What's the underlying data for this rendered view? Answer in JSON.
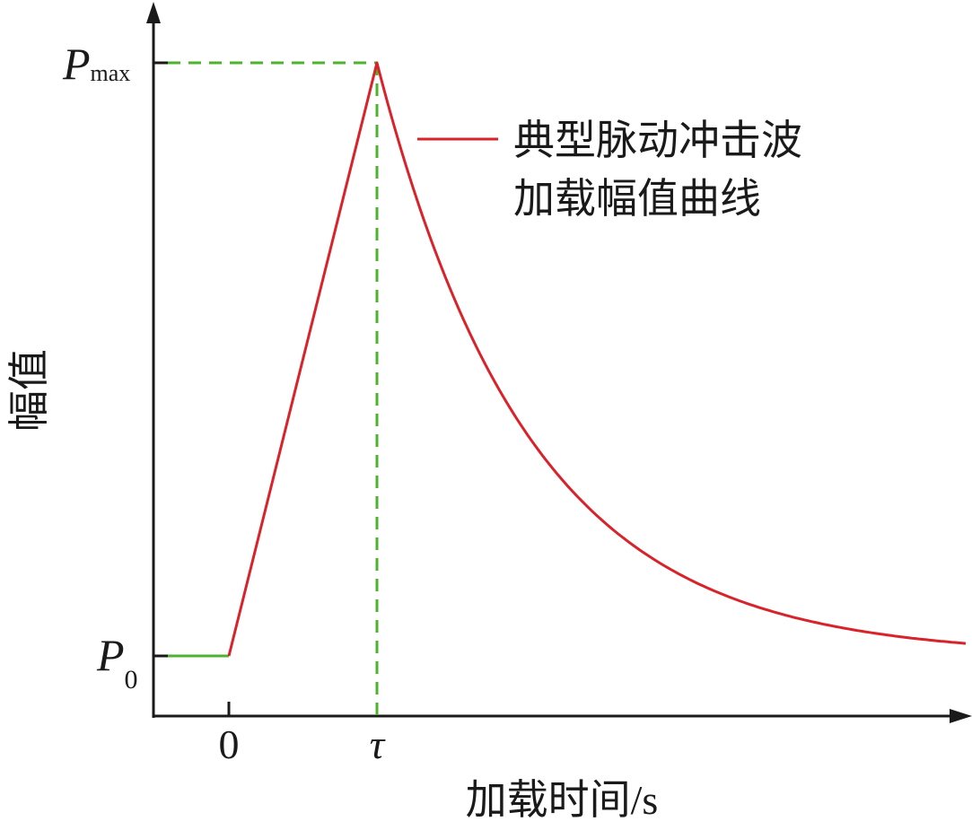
{
  "y_axis": {
    "label": "幅值",
    "ticks": [
      {
        "symbol": "P",
        "subscript": "max"
      },
      {
        "symbol": "P",
        "subscript": "0"
      }
    ]
  },
  "x_axis": {
    "label": "加载时间/s",
    "ticks": [
      "0",
      "τ"
    ]
  },
  "legend": {
    "lines": [
      "典型脉动冲击波",
      "加载幅值曲线"
    ]
  }
}
